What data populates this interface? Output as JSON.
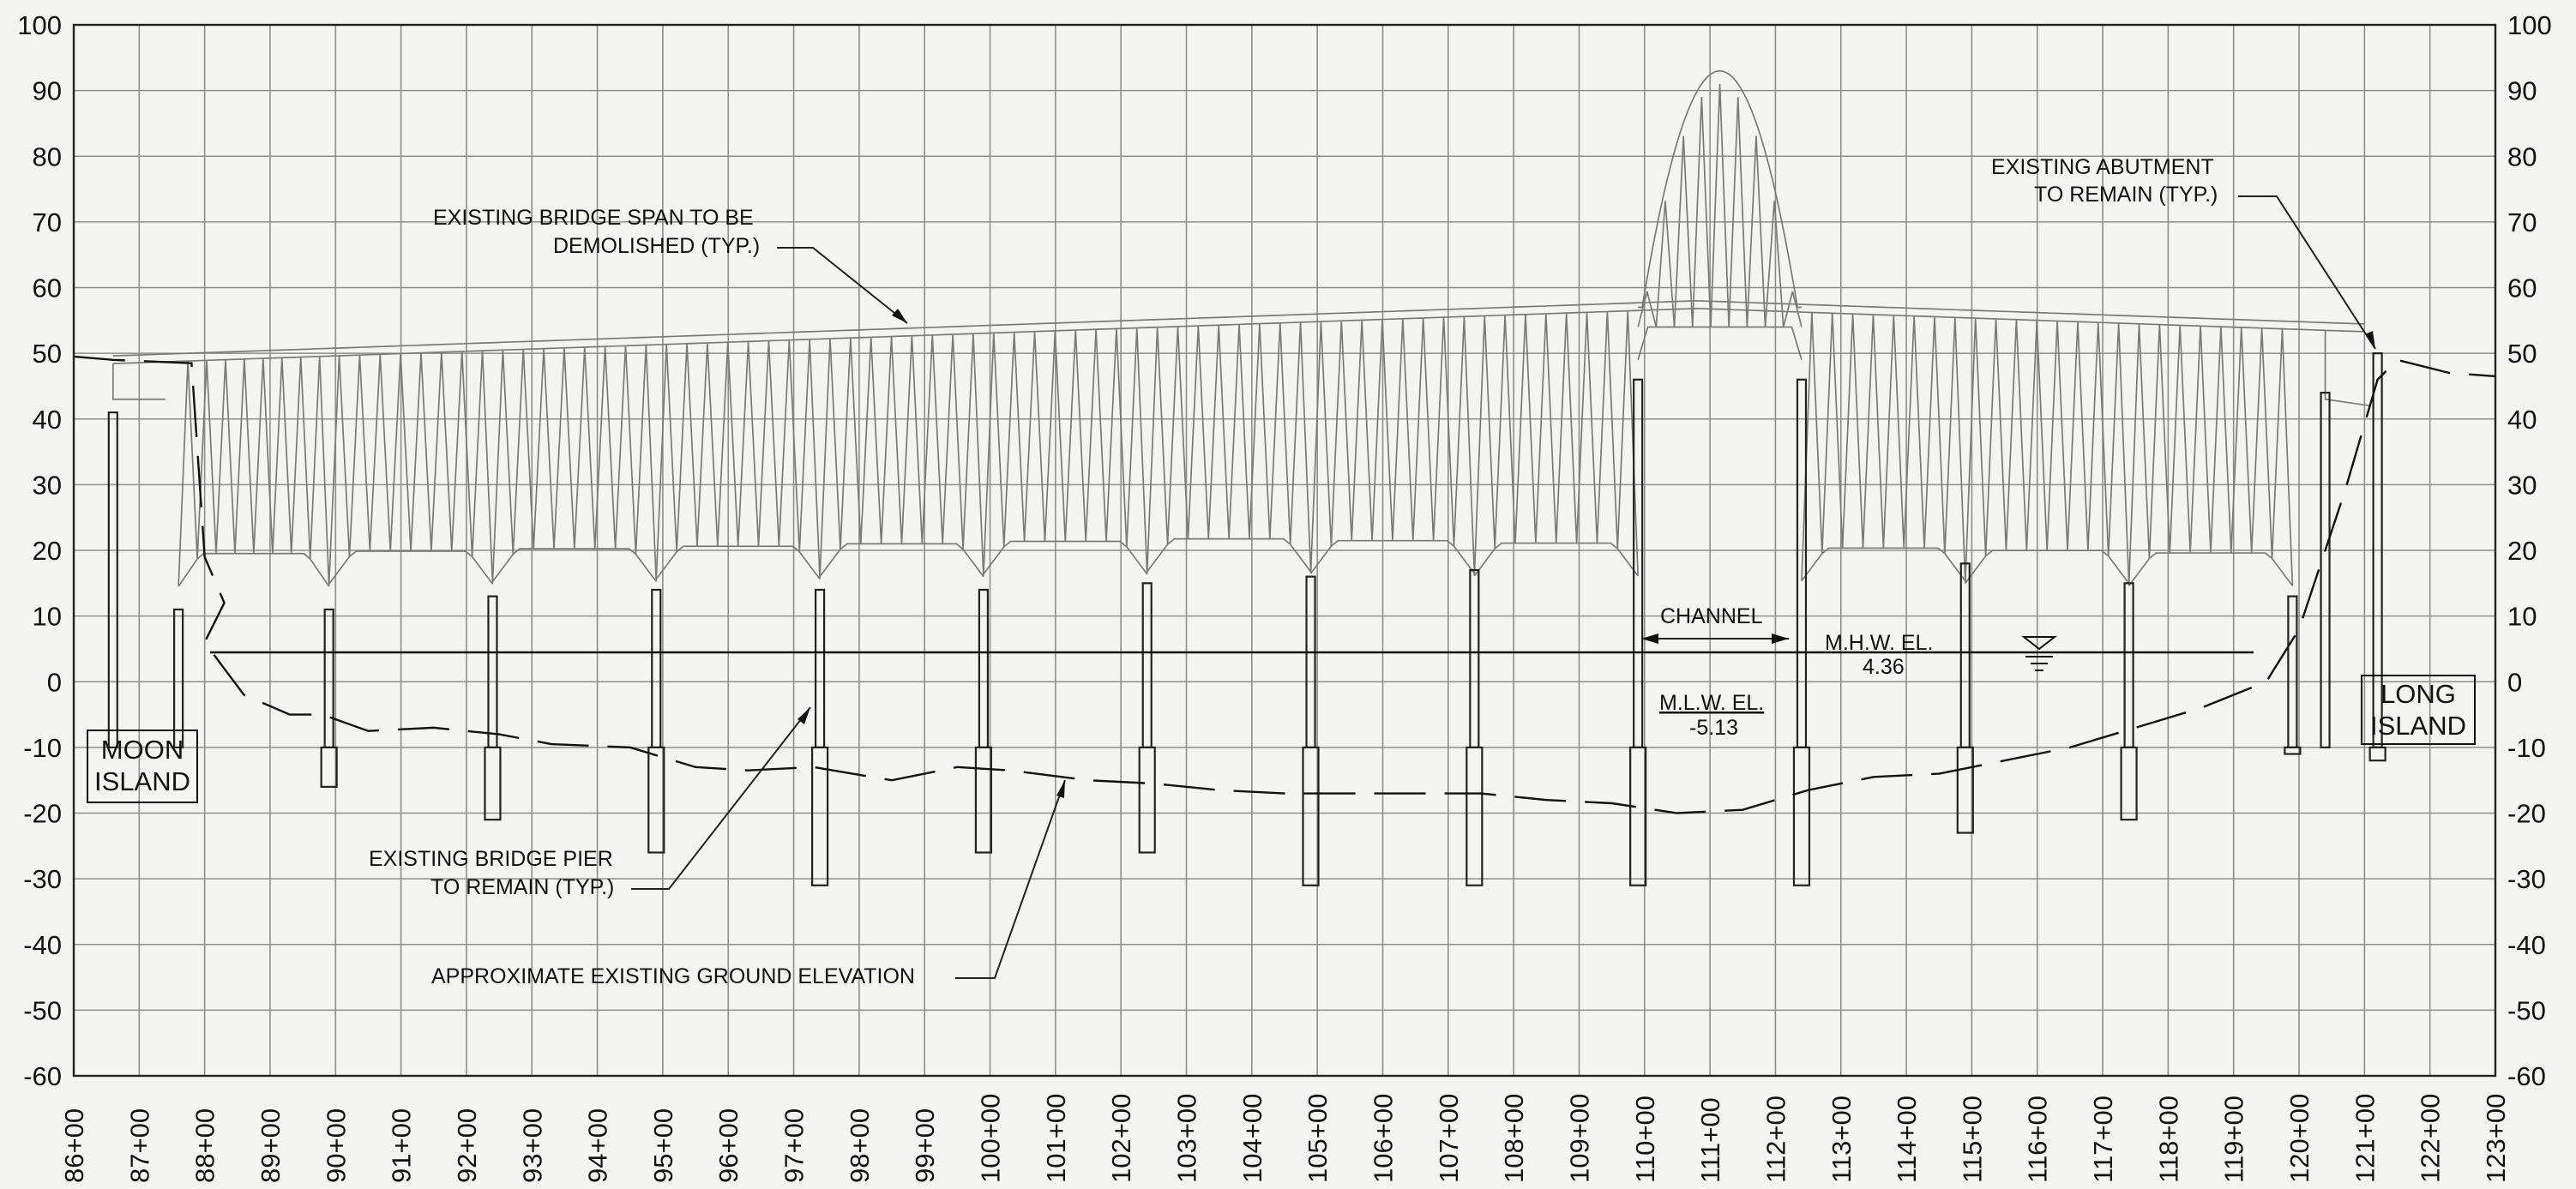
{
  "y_axis": {
    "ticks": [
      "100",
      "90",
      "80",
      "70",
      "60",
      "50",
      "40",
      "30",
      "20",
      "10",
      "0",
      "-10",
      "-20",
      "-30",
      "-40",
      "-50",
      "-60"
    ],
    "min": -60,
    "max": 100
  },
  "x_axis": {
    "ticks": [
      "86+00",
      "87+00",
      "88+00",
      "89+00",
      "90+00",
      "91+00",
      "92+00",
      "93+00",
      "94+00",
      "95+00",
      "96+00",
      "97+00",
      "98+00",
      "99+00",
      "100+00",
      "101+00",
      "102+00",
      "103+00",
      "104+00",
      "105+00",
      "106+00",
      "107+00",
      "108+00",
      "109+00",
      "110+00",
      "111+00",
      "112+00",
      "113+00",
      "114+00",
      "115+00",
      "116+00",
      "117+00",
      "118+00",
      "119+00",
      "120+00",
      "121+00",
      "122+00",
      "123+00"
    ]
  },
  "labels": {
    "moon_island": [
      "MOON",
      "ISLAND"
    ],
    "long_island": [
      "LONG",
      "ISLAND"
    ],
    "bridge_span": [
      "EXISTING BRIDGE SPAN TO BE",
      "DEMOLISHED (TYP.)"
    ],
    "abutment": [
      "EXISTING ABUTMENT",
      "TO REMAIN (TYP.)"
    ],
    "pier": [
      "EXISTING BRIDGE PIER",
      "TO REMAIN (TYP.)"
    ],
    "ground": "APPROXIMATE EXISTING  GROUND ELEVATION",
    "channel": "CHANNEL",
    "mhw_label": "M.H.W. EL.",
    "mhw_value": "4.36",
    "mlw_label": "M.L.W. EL.",
    "mlw_value": "-5.13"
  },
  "piers_station": [
    86.6,
    87.6,
    89.9,
    92.4,
    94.9,
    97.4,
    99.9,
    102.4,
    104.9,
    107.4,
    109.9,
    112.4,
    114.9,
    117.4,
    119.9,
    120.4,
    121.2
  ],
  "water_elevations": {
    "mhw": 4.36,
    "mlw": -5.13
  },
  "colors": {
    "background": "#f4f4f2",
    "grid": "#8e8e8e",
    "ink": "#111111",
    "truss": "#7a7a7a"
  }
}
